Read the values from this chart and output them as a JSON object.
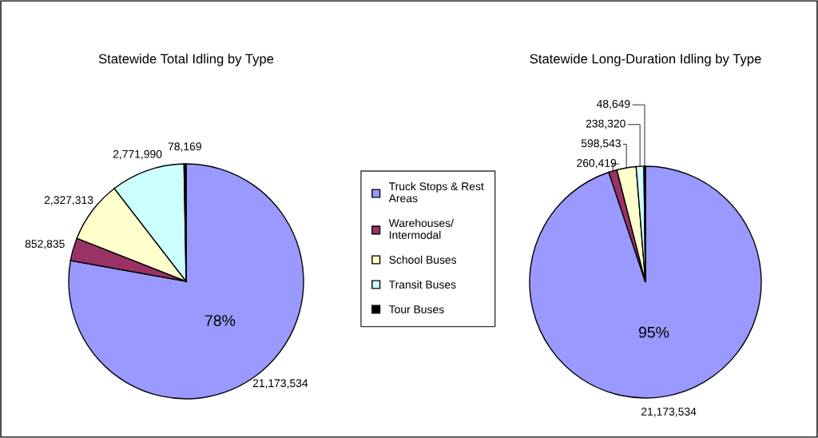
{
  "chart_data": [
    {
      "type": "pie",
      "title": "Statewide Total Idling by Type",
      "categories": [
        "Truck Stops & Rest Areas",
        "Warehouses/ Intermodal",
        "School Buses",
        "Transit Buses",
        "Tour Buses"
      ],
      "values": [
        21173534,
        852835,
        2327313,
        2771990,
        78169
      ],
      "colors": [
        "#9999ff",
        "#993366",
        "#ffffcc",
        "#ccffff",
        "#000000"
      ],
      "value_labels": [
        "21,173,534",
        "852,835",
        "2,327,313",
        "2,771,990",
        "78,169"
      ],
      "annotations": [
        "78%"
      ],
      "legend": "right"
    },
    {
      "type": "pie",
      "title": "Statewide Long-Duration Idling by Type",
      "categories": [
        null,
        null,
        null,
        null,
        null
      ],
      "values": [
        21173534,
        260419,
        598543,
        238320,
        48649
      ],
      "colors": [
        "#9999ff",
        "#993366",
        "#ffffcc",
        "#ccffff",
        "#000000"
      ],
      "value_labels": [
        "21,173,534",
        "260,419",
        "598,543",
        "238,320",
        "48,649"
      ],
      "annotations": [
        "95%"
      ]
    }
  ]
}
